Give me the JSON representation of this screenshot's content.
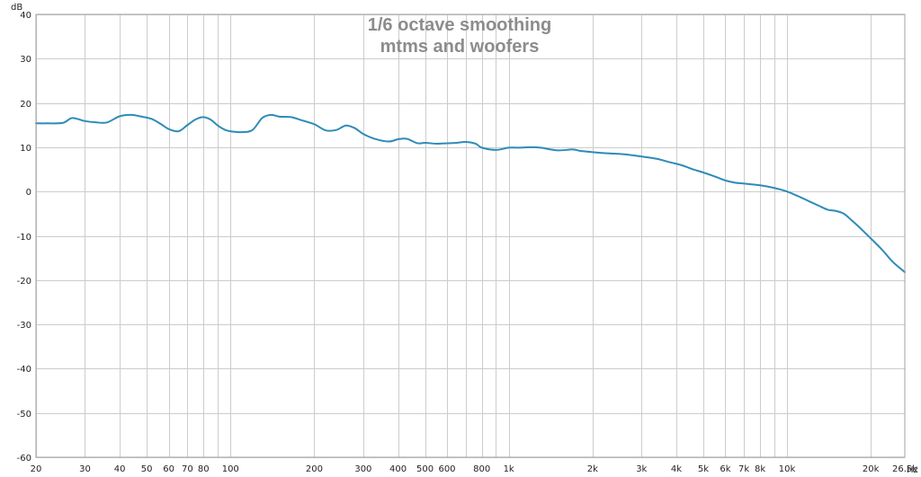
{
  "chart_data": {
    "type": "line",
    "title": [
      "1/6 octave smoothing",
      "mtms and woofers"
    ],
    "ylabel": "dB",
    "xunit": "Hz",
    "xscale": "log",
    "xlim": [
      20,
      26500
    ],
    "ylim": [
      -60,
      40
    ],
    "grid": true,
    "y_ticks": [
      {
        "value": 40,
        "label": "40"
      },
      {
        "value": 30,
        "label": "30"
      },
      {
        "value": 20,
        "label": "20"
      },
      {
        "value": 10,
        "label": "10"
      },
      {
        "value": 0,
        "label": "0"
      },
      {
        "value": -10,
        "label": "-10"
      },
      {
        "value": -20,
        "label": "-20"
      },
      {
        "value": -30,
        "label": "-30"
      },
      {
        "value": -40,
        "label": "-40"
      },
      {
        "value": -50,
        "label": "-50"
      },
      {
        "value": -60,
        "label": "-60"
      }
    ],
    "x_ticks": [
      {
        "value": 20,
        "label": "20"
      },
      {
        "value": 30,
        "label": "30"
      },
      {
        "value": 40,
        "label": "40"
      },
      {
        "value": 50,
        "label": "50"
      },
      {
        "value": 60,
        "label": "60"
      },
      {
        "value": 70,
        "label": "70"
      },
      {
        "value": 80,
        "label": "80"
      },
      {
        "value": 100,
        "label": "100"
      },
      {
        "value": 200,
        "label": "200"
      },
      {
        "value": 300,
        "label": "300"
      },
      {
        "value": 400,
        "label": "400"
      },
      {
        "value": 500,
        "label": "500"
      },
      {
        "value": 600,
        "label": "600"
      },
      {
        "value": 800,
        "label": "800"
      },
      {
        "value": 1000,
        "label": "1k"
      },
      {
        "value": 2000,
        "label": "2k"
      },
      {
        "value": 3000,
        "label": "3k"
      },
      {
        "value": 4000,
        "label": "4k"
      },
      {
        "value": 5000,
        "label": "5k"
      },
      {
        "value": 6000,
        "label": "6k"
      },
      {
        "value": 7000,
        "label": "7k"
      },
      {
        "value": 8000,
        "label": "8k"
      },
      {
        "value": 10000,
        "label": "10k"
      },
      {
        "value": 20000,
        "label": "20k"
      },
      {
        "value": 26500,
        "label": "26.5k"
      }
    ],
    "grid_x": [
      20,
      30,
      40,
      50,
      60,
      70,
      80,
      90,
      100,
      200,
      300,
      400,
      500,
      600,
      700,
      800,
      900,
      1000,
      2000,
      3000,
      4000,
      5000,
      6000,
      7000,
      8000,
      9000,
      10000,
      20000
    ],
    "series": [
      {
        "color": "#2e8bb8",
        "x": [
          20,
          22,
          25,
          27,
          30,
          33,
          36,
          40,
          44,
          48,
          52,
          56,
          60,
          65,
          70,
          75,
          80,
          85,
          90,
          95,
          100,
          110,
          120,
          130,
          140,
          150,
          165,
          180,
          200,
          220,
          240,
          260,
          280,
          300,
          330,
          370,
          400,
          430,
          470,
          500,
          550,
          600,
          650,
          700,
          760,
          800,
          900,
          1000,
          1100,
          1200,
          1300,
          1500,
          1700,
          1800,
          2000,
          2300,
          2600,
          3000,
          3400,
          3800,
          4200,
          4600,
          5000,
          5500,
          6000,
          6500,
          7000,
          8000,
          9000,
          10000,
          11000,
          12000,
          13000,
          14000,
          15000,
          16000,
          17000,
          18000,
          20000,
          22000,
          24000,
          26500
        ],
        "y": [
          15.4,
          15.4,
          15.5,
          16.6,
          15.9,
          15.6,
          15.6,
          17.0,
          17.3,
          16.9,
          16.4,
          15.3,
          14.1,
          13.6,
          15.0,
          16.3,
          16.8,
          16.2,
          14.9,
          14.0,
          13.6,
          13.4,
          13.9,
          16.6,
          17.3,
          16.9,
          16.8,
          16.1,
          15.2,
          13.8,
          13.9,
          14.9,
          14.3,
          13.0,
          11.9,
          11.3,
          11.8,
          11.9,
          10.9,
          11.0,
          10.8,
          10.9,
          11.0,
          11.2,
          10.8,
          9.9,
          9.4,
          9.9,
          9.9,
          10.0,
          9.9,
          9.3,
          9.5,
          9.2,
          8.9,
          8.6,
          8.4,
          7.9,
          7.4,
          6.6,
          5.9,
          5.0,
          4.3,
          3.4,
          2.5,
          2.0,
          1.8,
          1.4,
          0.8,
          0.0,
          -1.1,
          -2.2,
          -3.2,
          -4.1,
          -4.4,
          -5.0,
          -6.4,
          -7.8,
          -10.6,
          -13.2,
          -15.9,
          -18.2
        ]
      }
    ]
  }
}
